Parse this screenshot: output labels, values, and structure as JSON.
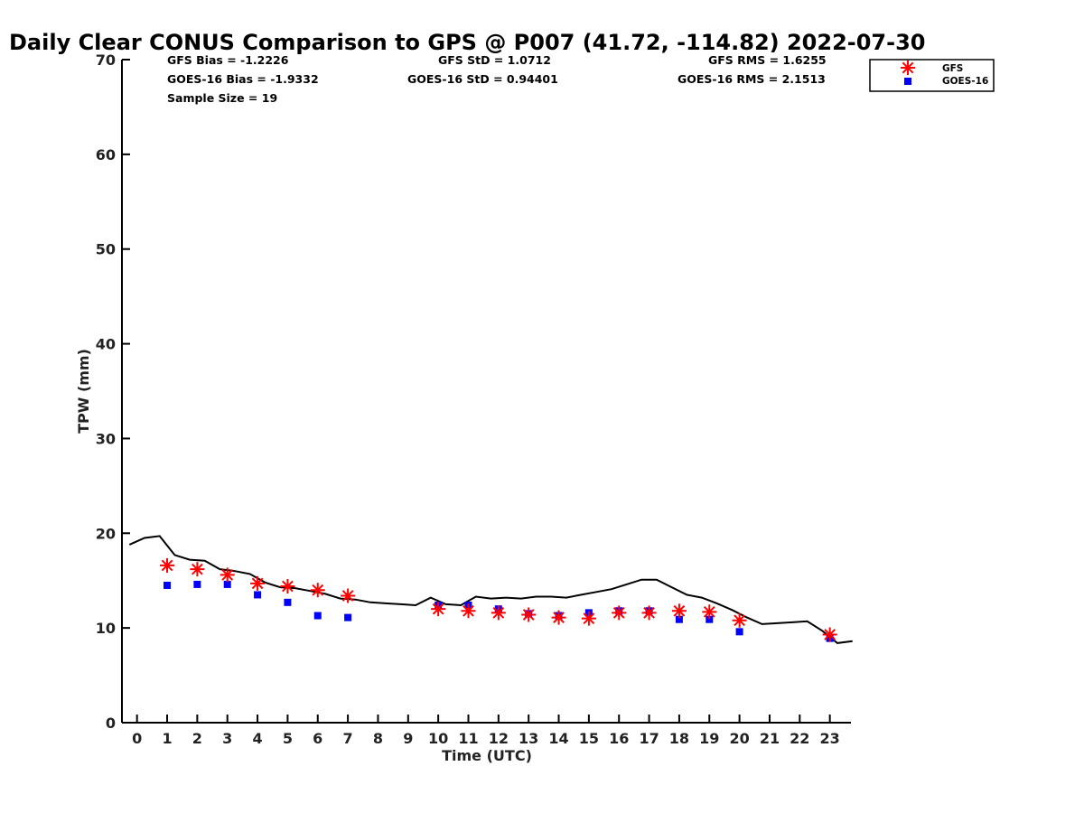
{
  "chart_data": {
    "type": "scatter",
    "title": "Daily Clear CONUS Comparison to GPS @ P007 (41.72, -114.82) 2022-07-30",
    "xlabel": "Time (UTC)",
    "ylabel": "TPW (mm)",
    "xlim": [
      -0.5,
      23.7
    ],
    "ylim": [
      0,
      70
    ],
    "xticks": [
      "0",
      "1",
      "2",
      "3",
      "4",
      "5",
      "6",
      "7",
      "8",
      "9",
      "10",
      "11",
      "12",
      "13",
      "14",
      "15",
      "16",
      "17",
      "18",
      "19",
      "20",
      "21",
      "22",
      "23"
    ],
    "yticks": [
      "0",
      "10",
      "20",
      "30",
      "40",
      "50",
      "60",
      "70"
    ],
    "grid": false,
    "legend_position": "top-right",
    "stats": {
      "gfs_bias": "GFS Bias = -1.2226",
      "goes_bias": "GOES-16 Bias = -1.9332",
      "sample_size": "Sample Size = 19",
      "gfs_std": "GFS StD = 1.0712",
      "goes_std": "GOES-16 StD = 0.94401",
      "gfs_rms": "GFS RMS = 1.6255",
      "goes_rms": "GOES-16 RMS = 2.1513"
    },
    "gps_line": {
      "color": "#000000",
      "points": [
        [
          -0.25,
          18.8
        ],
        [
          0.25,
          19.5
        ],
        [
          0.75,
          19.7
        ],
        [
          1.25,
          17.7
        ],
        [
          1.75,
          17.2
        ],
        [
          2.25,
          17.1
        ],
        [
          2.75,
          16.2
        ],
        [
          3.25,
          16.0
        ],
        [
          3.75,
          15.7
        ],
        [
          4.25,
          14.8
        ],
        [
          4.75,
          14.3
        ],
        [
          5.25,
          14.2
        ],
        [
          5.75,
          13.9
        ],
        [
          6.25,
          13.6
        ],
        [
          6.75,
          13.1
        ],
        [
          7.25,
          13.0
        ],
        [
          7.75,
          12.7
        ],
        [
          8.25,
          12.6
        ],
        [
          8.75,
          12.5
        ],
        [
          9.25,
          12.4
        ],
        [
          9.75,
          13.2
        ],
        [
          10.25,
          12.5
        ],
        [
          10.75,
          12.4
        ],
        [
          11.25,
          13.3
        ],
        [
          11.75,
          13.1
        ],
        [
          12.25,
          13.2
        ],
        [
          12.75,
          13.1
        ],
        [
          13.25,
          13.3
        ],
        [
          13.75,
          13.3
        ],
        [
          14.25,
          13.2
        ],
        [
          14.75,
          13.5
        ],
        [
          15.25,
          13.8
        ],
        [
          15.75,
          14.1
        ],
        [
          16.25,
          14.6
        ],
        [
          16.75,
          15.1
        ],
        [
          17.25,
          15.1
        ],
        [
          17.75,
          14.3
        ],
        [
          18.25,
          13.5
        ],
        [
          18.75,
          13.2
        ],
        [
          19.25,
          12.6
        ],
        [
          19.75,
          11.9
        ],
        [
          20.25,
          11.1
        ],
        [
          20.75,
          10.4
        ],
        [
          21.25,
          10.5
        ],
        [
          21.75,
          10.6
        ],
        [
          22.25,
          10.7
        ],
        [
          22.75,
          9.7
        ],
        [
          23.25,
          8.4
        ],
        [
          23.75,
          8.6
        ]
      ]
    },
    "series": [
      {
        "name": "GFS",
        "marker": "asterisk",
        "color": "#ff0000",
        "points": [
          [
            1,
            16.6
          ],
          [
            2,
            16.2
          ],
          [
            3,
            15.6
          ],
          [
            4,
            14.7
          ],
          [
            5,
            14.4
          ],
          [
            6,
            14.0
          ],
          [
            7,
            13.4
          ],
          [
            10,
            12.0
          ],
          [
            11,
            11.8
          ],
          [
            12,
            11.6
          ],
          [
            13,
            11.4
          ],
          [
            14,
            11.1
          ],
          [
            15,
            11.0
          ],
          [
            16,
            11.6
          ],
          [
            17,
            11.6
          ],
          [
            18,
            11.8
          ],
          [
            19,
            11.7
          ],
          [
            20,
            10.8
          ],
          [
            23,
            9.3
          ]
        ]
      },
      {
        "name": "GOES-16",
        "marker": "square",
        "color": "#0000ff",
        "points": [
          [
            1,
            14.5
          ],
          [
            2,
            14.6
          ],
          [
            3,
            14.6
          ],
          [
            4,
            13.5
          ],
          [
            5,
            12.7
          ],
          [
            6,
            11.3
          ],
          [
            7,
            11.1
          ],
          [
            10,
            12.4
          ],
          [
            11,
            12.4
          ],
          [
            12,
            12.0
          ],
          [
            13,
            11.5
          ],
          [
            14,
            11.3
          ],
          [
            15,
            11.6
          ],
          [
            16,
            11.8
          ],
          [
            17,
            11.8
          ],
          [
            18,
            10.9
          ],
          [
            19,
            10.9
          ],
          [
            20,
            9.6
          ],
          [
            23,
            8.9
          ]
        ]
      }
    ]
  }
}
